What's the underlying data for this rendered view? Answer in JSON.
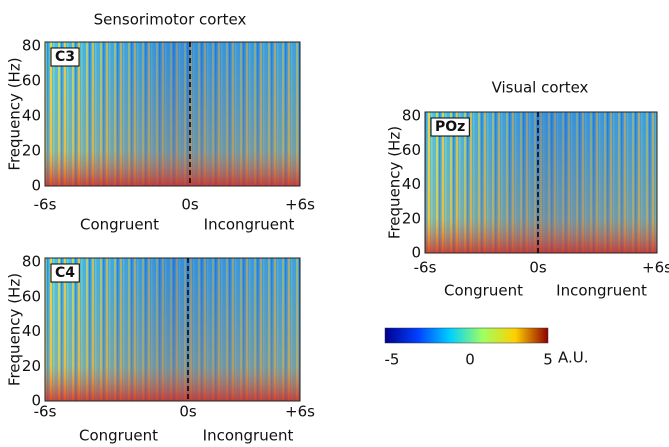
{
  "panels": [
    {
      "title": "Sensorimotor cortex",
      "label": "C3",
      "y_label": "Frequency (Hz)",
      "yticks": [
        0,
        20,
        40,
        60,
        80
      ],
      "xticks": [
        "-6s",
        "0s",
        "+6s"
      ],
      "conditions": [
        "Congruent",
        "Incongruent"
      ]
    },
    {
      "label": "C4",
      "y_label": "Frequency (Hz)",
      "yticks": [
        0,
        20,
        40,
        60,
        80
      ],
      "xticks": [
        "-6s",
        "0s",
        "+6s"
      ],
      "conditions": [
        "Congruent",
        "Incongruent"
      ]
    },
    {
      "title": "Visual cortex",
      "label": "POz",
      "y_label": "Frequency (Hz)",
      "yticks": [
        0,
        20,
        40,
        60,
        80
      ],
      "xticks": [
        "-6s",
        "0s",
        "+6s"
      ],
      "conditions": [
        "Congruent",
        "Incongruent"
      ]
    }
  ],
  "colorbar": {
    "ticks": [
      "-5",
      "0",
      "5"
    ],
    "unit": "A.U."
  }
}
